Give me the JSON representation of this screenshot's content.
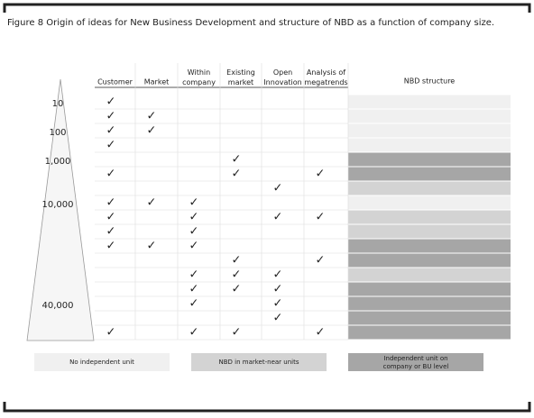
{
  "title": "Figure 8 Origin of ideas for New Business Development and structure of NBD as a function of company size.",
  "columns": [
    "Customer",
    "Market",
    "Within company",
    "Existing market",
    "Open Innovation",
    "Analysis of megatrends"
  ],
  "structure_header": "NBD structure",
  "legend": [
    {
      "label": "No independent unit",
      "color": "#f0f0f0"
    },
    {
      "label": "NBD in market-near units",
      "color": "#d3d3d3"
    },
    {
      "label": "Independent unit on company or BU level",
      "color": "#a6a6a6"
    }
  ],
  "rows": [
    {
      "size": "10",
      "cells": [
        "✓",
        null,
        null,
        null,
        null,
        null
      ],
      "structure": 0
    },
    {
      "cells": [
        "✓",
        "✓",
        null,
        null,
        null,
        null
      ],
      "structure": 0
    },
    {
      "size": "100",
      "cells": [
        "✓",
        "✓",
        null,
        null,
        null,
        null
      ],
      "structure": 0
    },
    {
      "cells": [
        "✓",
        null,
        null,
        null,
        null,
        null
      ],
      "structure": 0
    },
    {
      "size": "1,000",
      "cells": [
        null,
        null,
        null,
        "✓",
        null,
        null
      ],
      "structure": 2
    },
    {
      "cells": [
        "✓",
        null,
        null,
        "✓",
        null,
        "✓"
      ],
      "structure": 2
    },
    {
      "cells": [
        null,
        null,
        null,
        null,
        "✓",
        null
      ],
      "structure": 1
    },
    {
      "size": "10,000",
      "cells": [
        "✓",
        "✓",
        "✓",
        null,
        null,
        null
      ],
      "structure": 0
    },
    {
      "cells": [
        "✓",
        null,
        "✓",
        null,
        "✓",
        "✓"
      ],
      "structure": 1
    },
    {
      "cells": [
        "✓",
        null,
        "✓",
        null,
        null,
        null
      ],
      "structure": 1
    },
    {
      "cells": [
        "✓",
        "✓",
        "✓",
        null,
        null,
        null
      ],
      "structure": 2
    },
    {
      "cells": [
        null,
        null,
        null,
        "✓",
        null,
        "✓"
      ],
      "structure": 2
    },
    {
      "cells": [
        null,
        null,
        "✓",
        "✓",
        "✓",
        null
      ],
      "structure": 1
    },
    {
      "cells": [
        null,
        null,
        "✓",
        "✓",
        "✓",
        null
      ],
      "structure": 2
    },
    {
      "size": "40,000",
      "cells": [
        null,
        null,
        "✓",
        null,
        "✓",
        null
      ],
      "structure": 2
    },
    {
      "cells": [
        null,
        null,
        null,
        null,
        "✓",
        null
      ],
      "structure": 2
    },
    {
      "cells": [
        "✓",
        null,
        "✓",
        "✓",
        null,
        "✓"
      ],
      "structure": 2
    }
  ]
}
